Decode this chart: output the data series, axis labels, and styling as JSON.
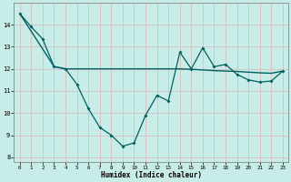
{
  "xlabel": "Humidex (Indice chaleur)",
  "background_color": "#c8ece8",
  "grid_color_major": "#c0b0b0",
  "grid_color_minor": "#d8e8e0",
  "line_color": "#006060",
  "x_jagged": [
    0,
    1,
    2,
    3,
    4,
    5,
    6,
    7,
    8,
    9,
    10,
    11,
    12,
    13,
    14,
    15,
    16,
    17,
    18,
    19,
    20,
    21,
    22,
    23
  ],
  "y_jagged": [
    14.5,
    13.9,
    13.35,
    12.1,
    12.0,
    11.3,
    10.2,
    9.35,
    9.0,
    8.5,
    8.65,
    9.9,
    10.8,
    10.55,
    12.75,
    12.0,
    12.95,
    12.1,
    12.2,
    11.75,
    11.5,
    11.4,
    11.45,
    11.9
  ],
  "x_smooth": [
    0,
    3,
    4,
    10,
    14,
    15,
    16,
    17,
    18,
    19,
    20,
    21,
    22,
    23
  ],
  "y_smooth": [
    14.5,
    12.1,
    12.0,
    12.0,
    12.0,
    11.98,
    11.95,
    11.92,
    11.9,
    11.88,
    11.85,
    11.82,
    11.8,
    11.9
  ],
  "ylim": [
    7.8,
    15.0
  ],
  "xlim": [
    -0.5,
    23.5
  ],
  "yticks": [
    8,
    9,
    10,
    11,
    12,
    13,
    14
  ],
  "xticks": [
    0,
    1,
    2,
    3,
    4,
    5,
    6,
    7,
    8,
    9,
    10,
    11,
    12,
    13,
    14,
    15,
    16,
    17,
    18,
    19,
    20,
    21,
    22,
    23
  ]
}
